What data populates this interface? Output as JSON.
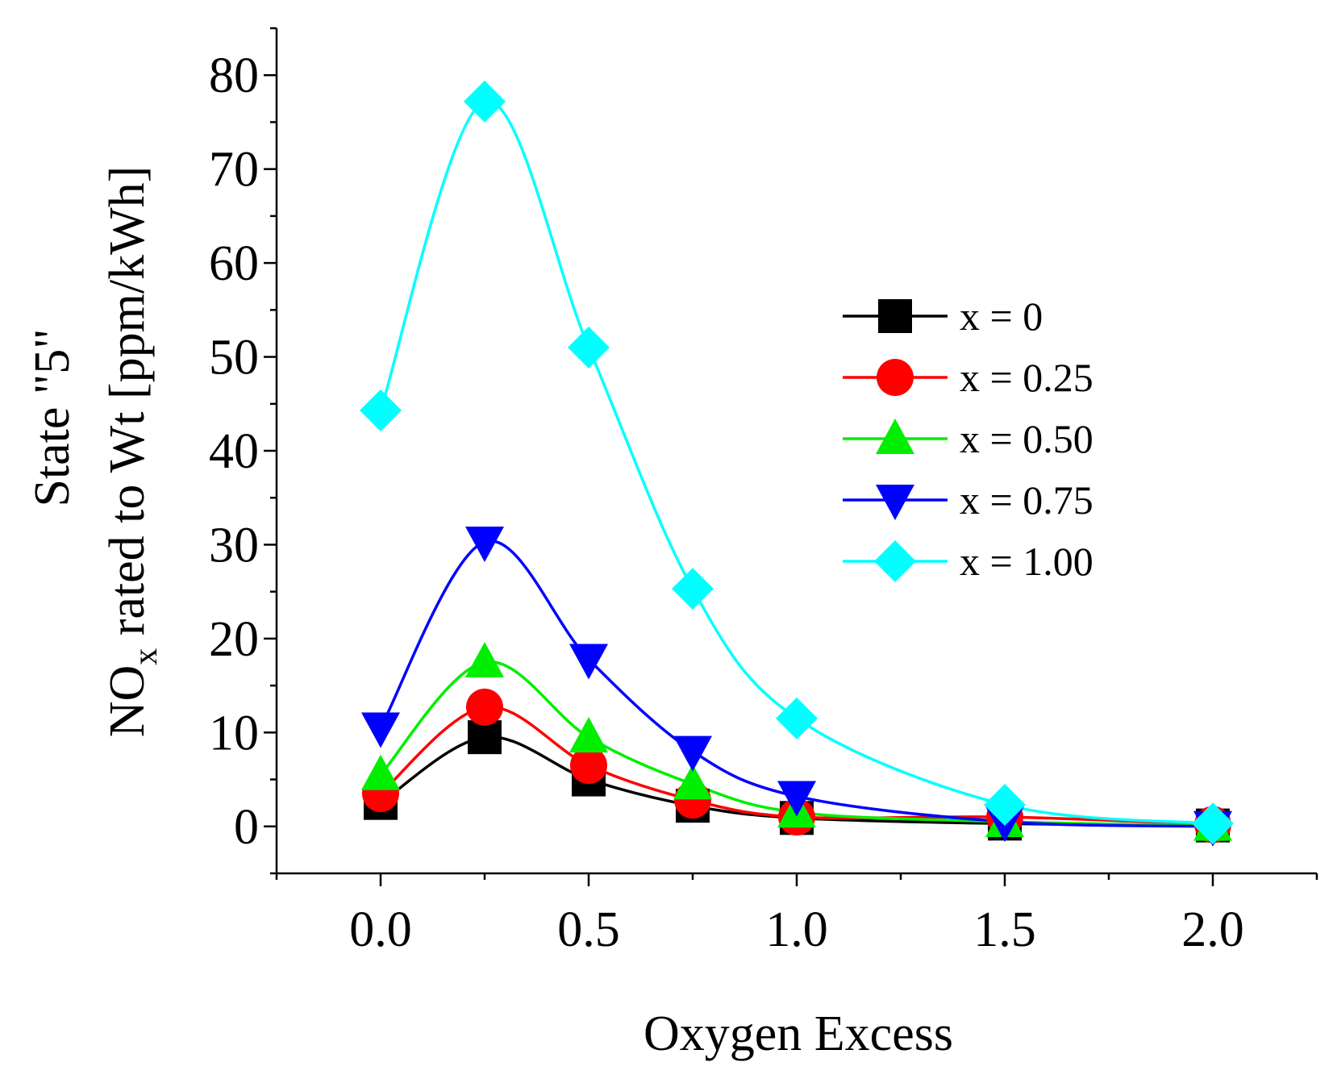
{
  "chart_data": {
    "type": "line",
    "title": "",
    "xlabel": "Oxygen Excess",
    "ylabel_line1": "State \"5\"",
    "ylabel_line2_main": "NO",
    "ylabel_line2_sub": "x",
    "ylabel_line2_rest": " rated to Wt [ppm/kWh]",
    "xlim": [
      -0.25,
      2.25
    ],
    "ylim": [
      -5,
      85
    ],
    "xticks": [
      0.0,
      0.5,
      1.0,
      1.5,
      2.0
    ],
    "xtick_labels": [
      "0.0",
      "0.5",
      "1.0",
      "1.5",
      "2.0"
    ],
    "yticks": [
      0,
      10,
      20,
      30,
      40,
      50,
      60,
      70,
      80
    ],
    "ytick_labels": [
      "0",
      "10",
      "20",
      "30",
      "40",
      "50",
      "60",
      "70",
      "80"
    ],
    "x": [
      0.0,
      0.25,
      0.5,
      0.75,
      1.0,
      1.5,
      2.0
    ],
    "legend_position": "center-right",
    "grid": false,
    "series": [
      {
        "name": "x = 0",
        "color": "#000000",
        "marker": "square",
        "values": [
          2.5,
          9.5,
          5.0,
          2.2,
          0.9,
          0.3,
          0.1
        ]
      },
      {
        "name": "x = 0.25",
        "color": "#ff0000",
        "marker": "circle",
        "values": [
          3.5,
          12.7,
          6.5,
          2.8,
          1.0,
          1.0,
          0.2
        ]
      },
      {
        "name": "x = 0.50",
        "color": "#00ee00",
        "marker": "triangle-up",
        "values": [
          5.5,
          17.5,
          9.5,
          4.5,
          1.5,
          0.5,
          0.1
        ]
      },
      {
        "name": "x = 0.75",
        "color": "#0000ff",
        "marker": "triangle-down",
        "values": [
          10.5,
          30.3,
          17.8,
          8.0,
          3.2,
          0.5,
          0.0
        ]
      },
      {
        "name": "x = 1.00",
        "color": "#00ffff",
        "marker": "diamond",
        "values": [
          44.3,
          77.2,
          51.0,
          25.3,
          11.5,
          2.3,
          0.3
        ]
      }
    ]
  }
}
